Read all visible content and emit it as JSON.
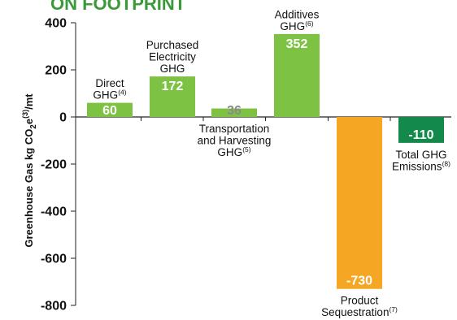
{
  "chart_data": {
    "type": "bar",
    "title": "ON FOOTPRINT",
    "ylabel": {
      "main": "Greenhouse Gas kg CO",
      "sub": "2",
      "e": "e",
      "sup": "(3)",
      "unit": "/mt"
    },
    "ylim": [
      -800,
      400
    ],
    "yticks": [
      {
        "value": 400,
        "label": "400"
      },
      {
        "value": 200,
        "label": "200"
      },
      {
        "value": 0,
        "label": "0"
      },
      {
        "value": -200,
        "label": "-200"
      },
      {
        "value": -400,
        "label": "-400"
      },
      {
        "value": -600,
        "label": "-600"
      },
      {
        "value": -800,
        "label": "-800"
      }
    ],
    "grid": false,
    "bars": [
      {
        "value": 60,
        "value_label": "60",
        "label_lines": [
          "Direct",
          "GHG"
        ],
        "label_sup": "(4)",
        "label_position": "above",
        "color": "#7dc242",
        "value_color": "#ffffff"
      },
      {
        "value": 172,
        "value_label": "172",
        "label_lines": [
          "Purchased",
          "Electricity",
          "GHG"
        ],
        "label_sup": "",
        "label_position": "above",
        "color": "#7dc242",
        "value_color": "#ffffff"
      },
      {
        "value": 36,
        "value_label": "36",
        "label_lines": [
          "Transportation",
          "and Harvesting",
          "GHG"
        ],
        "label_sup": "(5)",
        "label_position": "below",
        "color": "#7dc242",
        "value_color": "#8a8a8a"
      },
      {
        "value": 352,
        "value_label": "352",
        "label_lines": [
          "Additives",
          "GHG"
        ],
        "label_sup": "(6)",
        "label_position": "above",
        "color": "#7dc242",
        "value_color": "#ffffff"
      },
      {
        "value": -730,
        "value_label": "-730",
        "label_lines": [
          "Product",
          "Sequestration"
        ],
        "label_sup": "(7)",
        "label_position": "below",
        "color": "#f5a623",
        "value_color": "#ffffff"
      },
      {
        "value": -110,
        "value_label": "-110",
        "label_lines": [
          "Total GHG",
          "Emissions"
        ],
        "label_sup": "(8)",
        "label_position": "below",
        "color": "#138a4c",
        "value_color": "#ffffff"
      }
    ]
  }
}
